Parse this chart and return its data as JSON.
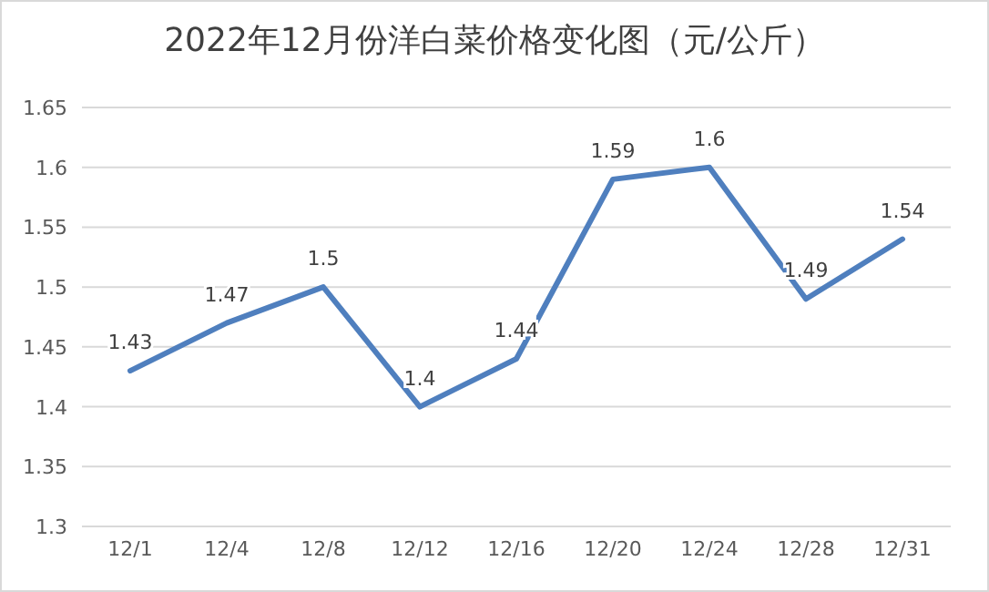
{
  "chart_data": {
    "type": "line",
    "title": "2022年12月份洋白菜价格变化图（元/公斤）",
    "categories": [
      "12/1",
      "12/4",
      "12/8",
      "12/12",
      "12/16",
      "12/20",
      "12/24",
      "12/28",
      "12/31"
    ],
    "series": [
      {
        "color": "#4f7fbe",
        "values": [
          1.43,
          1.47,
          1.5,
          1.4,
          1.44,
          1.59,
          1.6,
          1.49,
          1.54
        ]
      }
    ],
    "ylim": [
      1.3,
      1.65
    ],
    "yticks": [
      1.3,
      1.35,
      1.4,
      1.45,
      1.5,
      1.55,
      1.6,
      1.65
    ],
    "grid": "y",
    "data_labels": true,
    "marker": "none",
    "line_style": "solid"
  }
}
